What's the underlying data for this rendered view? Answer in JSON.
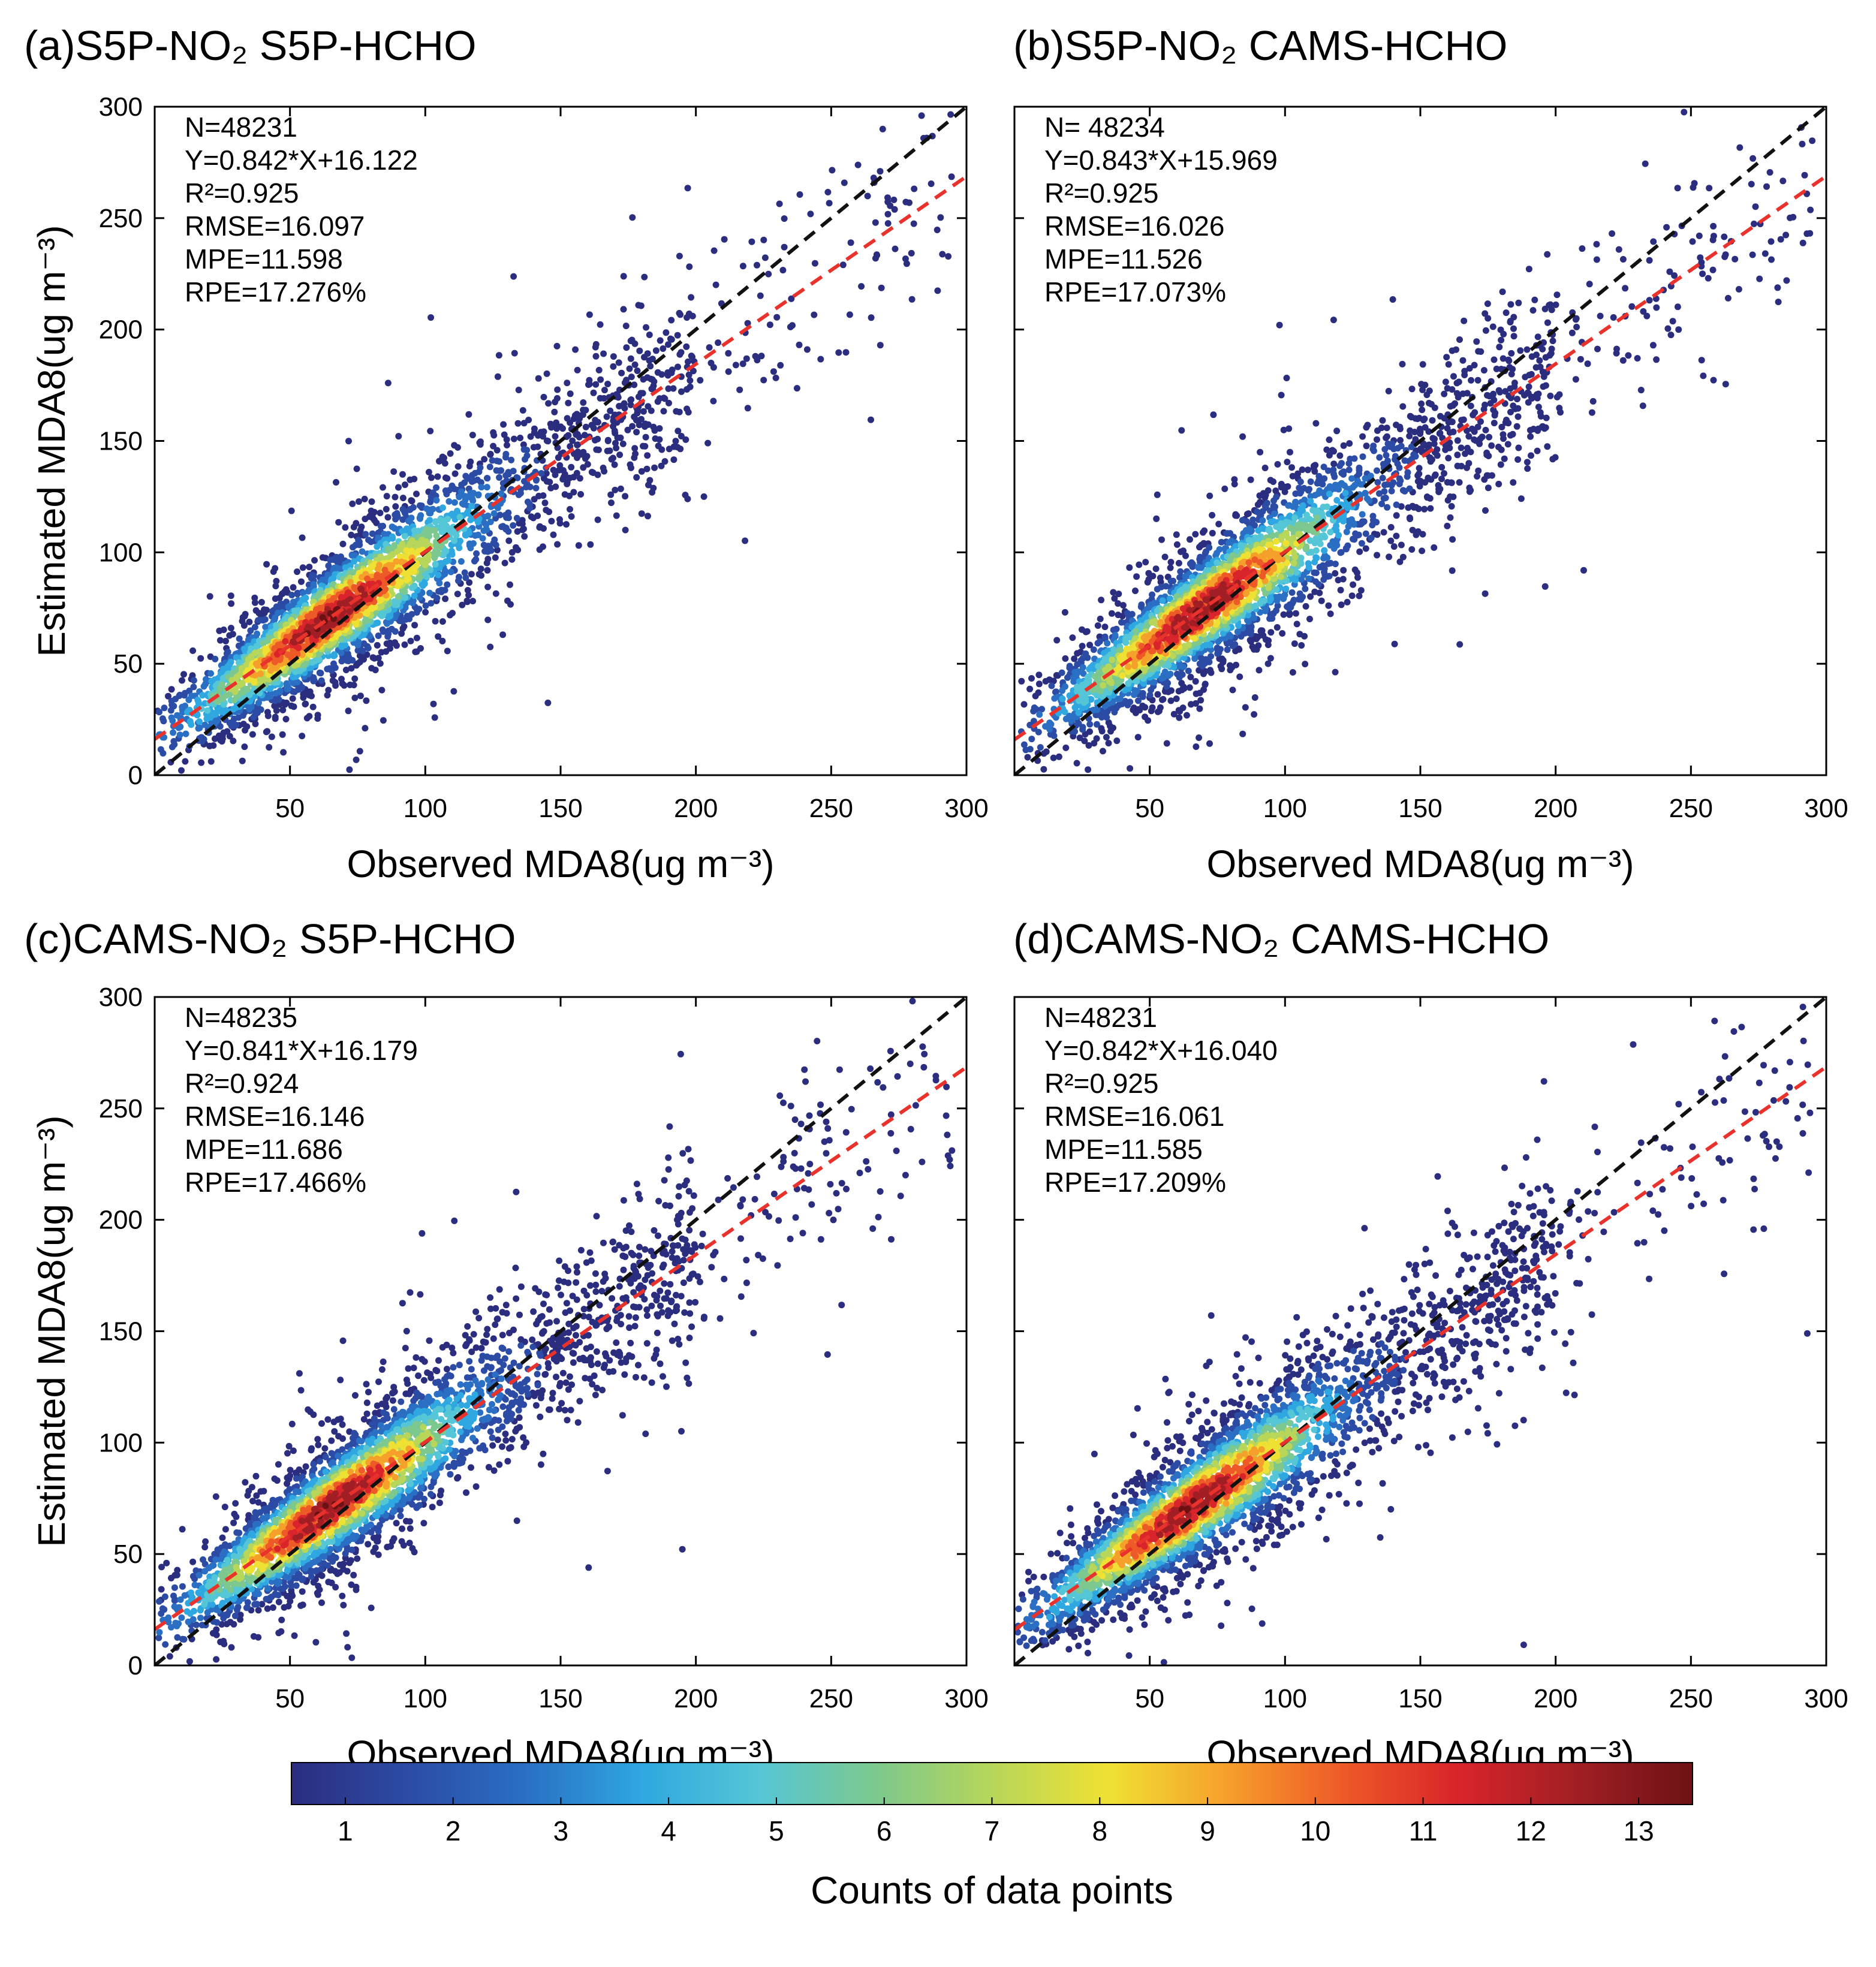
{
  "colorbar": {
    "label": "Counts of data points",
    "min": 0.5,
    "max": 13.5,
    "ticks": [
      "1",
      "2",
      "3",
      "4",
      "5",
      "6",
      "7",
      "8",
      "9",
      "10",
      "11",
      "12",
      "13"
    ],
    "colors": [
      "#2b2d7f",
      "#2c4ba5",
      "#2a6fc4",
      "#2fa7e0",
      "#55c6d6",
      "#7cc88e",
      "#b7d65a",
      "#efe134",
      "#f6a02c",
      "#ee5a27",
      "#d8242a",
      "#a11f24",
      "#6d1214"
    ]
  },
  "chart_data": [
    {
      "id": "a",
      "type": "scatter",
      "title": "(a)S5P-NO₂  S5P-HCHO",
      "xlabel": "Observed MDA8(ug m⁻³)",
      "ylabel": "Estimated MDA8(ug m⁻³)",
      "xlim": [
        0,
        300
      ],
      "ylim": [
        0,
        300
      ],
      "xticks": [
        "50",
        "100",
        "150",
        "200",
        "250",
        "300"
      ],
      "yticks": [
        "0",
        "50",
        "100",
        "150",
        "200",
        "250",
        "300"
      ],
      "stats": [
        "N=48231",
        "Y=0.842*X+16.122",
        "R²=0.925",
        "RMSE=16.097",
        "MPE=11.598",
        "RPE=17.276%"
      ],
      "fit": {
        "slope": 0.842,
        "intercept": 16.122,
        "color": "#e8322b"
      },
      "one_to_one": {
        "slope": 1,
        "intercept": 0,
        "color": "#111111"
      },
      "density_peak": [
        65,
        70
      ]
    },
    {
      "id": "b",
      "type": "scatter",
      "title": "(b)S5P-NO₂  CAMS-HCHO",
      "xlabel": "Observed MDA8(ug m⁻³)",
      "ylabel": "",
      "xlim": [
        0,
        300
      ],
      "ylim": [
        0,
        300
      ],
      "xticks": [
        "50",
        "100",
        "150",
        "200",
        "250",
        "300"
      ],
      "yticks": [],
      "stats": [
        "N= 48234",
        "Y=0.843*X+15.969",
        "R²=0.925",
        "RMSE=16.026",
        "MPE=11.526",
        "RPE=17.073%"
      ],
      "fit": {
        "slope": 0.843,
        "intercept": 15.969,
        "color": "#e8322b"
      },
      "one_to_one": {
        "slope": 1,
        "intercept": 0,
        "color": "#111111"
      },
      "density_peak": [
        70,
        75
      ]
    },
    {
      "id": "c",
      "type": "scatter",
      "title": "(c)CAMS-NO₂  S5P-HCHO",
      "xlabel": "Observed MDA8(ug m⁻³)",
      "ylabel": "Estimated MDA8(ug m⁻³)",
      "xlim": [
        0,
        300
      ],
      "ylim": [
        0,
        300
      ],
      "xticks": [
        "50",
        "100",
        "150",
        "200",
        "250",
        "300"
      ],
      "yticks": [
        "0",
        "50",
        "100",
        "150",
        "200",
        "250",
        "300"
      ],
      "stats": [
        "N=48235",
        "Y=0.841*X+16.179",
        "R²=0.924",
        "RMSE=16.146",
        "MPE=11.686",
        "RPE=17.466%"
      ],
      "fit": {
        "slope": 0.841,
        "intercept": 16.179,
        "color": "#e8322b"
      },
      "one_to_one": {
        "slope": 1,
        "intercept": 0,
        "color": "#111111"
      },
      "density_peak": [
        65,
        70
      ]
    },
    {
      "id": "d",
      "type": "scatter",
      "title": "(d)CAMS-NO₂  CAMS-HCHO",
      "xlabel": "Observed MDA8(ug m⁻³)",
      "ylabel": "",
      "xlim": [
        0,
        300
      ],
      "ylim": [
        0,
        300
      ],
      "xticks": [
        "50",
        "100",
        "150",
        "200",
        "250",
        "300"
      ],
      "yticks": [],
      "stats": [
        "N=48231",
        "Y=0.842*X+16.040",
        "R²=0.925",
        "RMSE=16.061",
        "MPE=11.585",
        "RPE=17.209%"
      ],
      "fit": {
        "slope": 0.842,
        "intercept": 16.04,
        "color": "#e8322b"
      },
      "one_to_one": {
        "slope": 1,
        "intercept": 0,
        "color": "#111111"
      },
      "density_peak": [
        65,
        70
      ]
    }
  ]
}
